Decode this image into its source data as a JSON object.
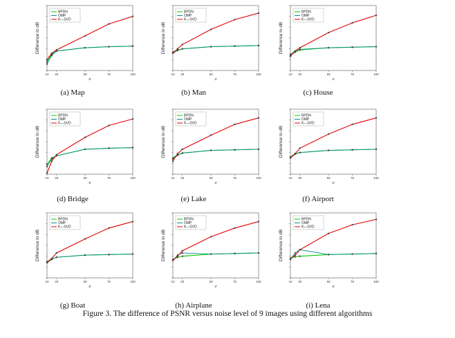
{
  "figure_caption": "Figure 3. The difference of PSNR versus noise level of 9 images using different algorithms",
  "colors": {
    "BPDN": "#00cc00",
    "OMP": "#0a8a8a",
    "K-SVD": "#e00000",
    "marker": "#444444"
  },
  "chart_data": [
    {
      "type": "line",
      "caption": "(a) Map",
      "x": [
        10,
        15,
        20,
        50,
        75,
        100
      ],
      "xlabel": "σ",
      "ylabel": "Difference in dB",
      "x_ticks": [
        "10",
        "20",
        "50",
        "75",
        "100"
      ],
      "y_ticks": [
        "",
        "",
        "",
        "",
        "",
        "",
        ""
      ],
      "xlim": [
        10,
        100
      ],
      "ylim": [
        0,
        6
      ],
      "legend": [
        "BPDN",
        "OMP",
        "K—SVD"
      ],
      "legend_position": "top-left",
      "series": [
        {
          "name": "BPDN",
          "values": [
            0.8,
            1.5,
            1.8,
            2.1,
            2.2,
            2.25
          ]
        },
        {
          "name": "OMP",
          "values": [
            0.6,
            1.4,
            1.8,
            2.1,
            2.2,
            2.25
          ]
        },
        {
          "name": "K-SVD",
          "values": [
            1.0,
            1.6,
            1.9,
            3.2,
            4.3,
            5.0
          ]
        }
      ]
    },
    {
      "type": "line",
      "caption": "(b) Man",
      "x": [
        10,
        15,
        20,
        50,
        75,
        100
      ],
      "xlabel": "σ",
      "ylabel": "Difference in dB",
      "x_ticks": [
        "10",
        "20",
        "50",
        "75",
        "100"
      ],
      "y_ticks": [
        "",
        "",
        "",
        "",
        "",
        "",
        ""
      ],
      "xlim": [
        10,
        100
      ],
      "ylim": [
        0,
        6
      ],
      "legend": [
        "BPDN",
        "OMP",
        "K—SVD"
      ],
      "legend_position": "top-left",
      "series": [
        {
          "name": "BPDN",
          "values": [
            1.7,
            1.9,
            2.0,
            2.2,
            2.25,
            2.3
          ]
        },
        {
          "name": "OMP",
          "values": [
            1.6,
            1.85,
            2.0,
            2.2,
            2.25,
            2.3
          ]
        },
        {
          "name": "K-SVD",
          "values": [
            1.6,
            2.0,
            2.4,
            3.8,
            4.7,
            5.3
          ]
        }
      ]
    },
    {
      "type": "line",
      "caption": "(c) House",
      "x": [
        10,
        15,
        20,
        50,
        75,
        100
      ],
      "xlabel": "σ",
      "ylabel": "Difference in dB",
      "x_ticks": [
        "10",
        "20",
        "50",
        "75",
        "100"
      ],
      "y_ticks": [
        "",
        "",
        "",
        "",
        "",
        "",
        ""
      ],
      "xlim": [
        10,
        100
      ],
      "ylim": [
        0,
        6
      ],
      "legend": [
        "BPDN",
        "OMP",
        "K—SVD"
      ],
      "legend_position": "top-left",
      "series": [
        {
          "name": "BPDN",
          "values": [
            1.4,
            1.7,
            1.9,
            2.1,
            2.15,
            2.2
          ]
        },
        {
          "name": "OMP",
          "values": [
            1.5,
            1.8,
            1.95,
            2.1,
            2.15,
            2.2
          ]
        },
        {
          "name": "K-SVD",
          "values": [
            1.3,
            1.8,
            2.1,
            3.5,
            4.4,
            5.1
          ]
        }
      ]
    },
    {
      "type": "line",
      "caption": "(d) Bridge",
      "x": [
        10,
        15,
        20,
        50,
        75,
        100
      ],
      "xlabel": "σ",
      "ylabel": "Difference in dB",
      "x_ticks": [
        "10",
        "20",
        "50",
        "75",
        "100"
      ],
      "y_ticks": [
        "",
        "",
        "",
        "",
        "",
        "",
        ""
      ],
      "xlim": [
        10,
        100
      ],
      "ylim": [
        0,
        6
      ],
      "legend": [
        "BPDN",
        "OMP",
        "K—SVD"
      ],
      "legend_position": "top-left",
      "series": [
        {
          "name": "BPDN",
          "values": [
            0.9,
            1.5,
            1.7,
            2.3,
            2.4,
            2.45
          ]
        },
        {
          "name": "OMP",
          "values": [
            0.7,
            1.4,
            1.7,
            2.3,
            2.4,
            2.45
          ]
        },
        {
          "name": "K-SVD",
          "values": [
            0.1,
            1.2,
            1.8,
            3.4,
            4.5,
            5.1
          ]
        }
      ]
    },
    {
      "type": "line",
      "caption": "(e) Lake",
      "x": [
        10,
        15,
        20,
        50,
        75,
        100
      ],
      "xlabel": "σ",
      "ylabel": "Difference in dB",
      "x_ticks": [
        "10",
        "20",
        "50",
        "75",
        "100"
      ],
      "y_ticks": [
        "",
        "",
        "",
        "",
        "",
        "",
        ""
      ],
      "xlim": [
        10,
        100
      ],
      "ylim": [
        0,
        6
      ],
      "legend": [
        "BPDN",
        "OMP",
        "K—SVD"
      ],
      "legend_position": "top-left",
      "series": [
        {
          "name": "BPDN",
          "values": [
            1.5,
            1.8,
            1.95,
            2.2,
            2.25,
            2.3
          ]
        },
        {
          "name": "OMP",
          "values": [
            1.4,
            1.75,
            1.95,
            2.2,
            2.25,
            2.3
          ]
        },
        {
          "name": "K-SVD",
          "values": [
            1.2,
            1.9,
            2.3,
            3.6,
            4.6,
            5.2
          ]
        }
      ]
    },
    {
      "type": "line",
      "caption": "(f) Airport",
      "x": [
        10,
        15,
        20,
        50,
        75,
        100
      ],
      "xlabel": "σ",
      "ylabel": "Difference in dB",
      "x_ticks": [
        "10",
        "20",
        "50",
        "75",
        "100"
      ],
      "y_ticks": [
        "",
        "",
        "",
        "",
        "",
        "",
        ""
      ],
      "xlim": [
        10,
        100
      ],
      "ylim": [
        0,
        6
      ],
      "legend": [
        "BPDN",
        "OMP",
        "K—SVD"
      ],
      "legend_position": "top-left",
      "series": [
        {
          "name": "BPDN",
          "values": [
            1.6,
            1.9,
            2.0,
            2.2,
            2.25,
            2.3
          ]
        },
        {
          "name": "OMP",
          "values": [
            1.5,
            1.85,
            2.0,
            2.2,
            2.25,
            2.3
          ]
        },
        {
          "name": "K-SVD",
          "values": [
            1.5,
            1.9,
            2.4,
            3.7,
            4.6,
            5.2
          ]
        }
      ]
    },
    {
      "type": "line",
      "caption": "(g) Boat",
      "x": [
        10,
        15,
        20,
        50,
        75,
        100
      ],
      "xlabel": "σ",
      "ylabel": "Difference in dB",
      "x_ticks": [
        "10",
        "20",
        "50",
        "75",
        "100"
      ],
      "y_ticks": [
        "",
        "",
        "",
        "",
        "",
        "",
        ""
      ],
      "xlim": [
        10,
        100
      ],
      "ylim": [
        0,
        6
      ],
      "legend": [
        "BPDN",
        "OMP",
        "K—SVD"
      ],
      "legend_position": "top-left",
      "series": [
        {
          "name": "BPDN",
          "values": [
            1.5,
            1.75,
            1.9,
            2.1,
            2.15,
            2.2
          ]
        },
        {
          "name": "OMP",
          "values": [
            1.4,
            1.7,
            1.9,
            2.1,
            2.15,
            2.2
          ]
        },
        {
          "name": "K-SVD",
          "values": [
            1.4,
            1.8,
            2.3,
            3.6,
            4.6,
            5.2
          ]
        }
      ]
    },
    {
      "type": "line",
      "caption": "(h) Airplane",
      "x": [
        10,
        15,
        20,
        50,
        75,
        100
      ],
      "xlabel": "σ",
      "ylabel": "Difference in dB",
      "x_ticks": [
        "10",
        "20",
        "50",
        "75",
        "100"
      ],
      "y_ticks": [
        "",
        "",
        "",
        "",
        "",
        "",
        ""
      ],
      "xlim": [
        10,
        100
      ],
      "ylim": [
        0,
        6
      ],
      "legend": [
        "BPDN",
        "OMP",
        "K—SVD"
      ],
      "legend_position": "top-left",
      "series": [
        {
          "name": "BPDN",
          "values": [
            1.7,
            1.9,
            2.0,
            2.2,
            2.25,
            2.3
          ]
        },
        {
          "name": "OMP",
          "values": [
            1.6,
            2.1,
            2.3,
            2.2,
            2.25,
            2.3
          ]
        },
        {
          "name": "K-SVD",
          "values": [
            1.6,
            2.0,
            2.5,
            3.8,
            4.6,
            5.2
          ]
        }
      ]
    },
    {
      "type": "line",
      "caption": "(i) Lena",
      "x": [
        10,
        15,
        20,
        50,
        75,
        100
      ],
      "xlabel": "σ",
      "ylabel": "Difference in dB",
      "x_ticks": [
        "10",
        "20",
        "50",
        "75",
        "100"
      ],
      "y_ticks": [
        "",
        "",
        "",
        "",
        "",
        "",
        ""
      ],
      "xlim": [
        10,
        100
      ],
      "ylim": [
        0,
        6
      ],
      "legend": [
        "BPDN",
        "OMP",
        "K—SVD"
      ],
      "legend_position": "top-left",
      "series": [
        {
          "name": "BPDN",
          "values": [
            1.8,
            1.95,
            2.0,
            2.15,
            2.2,
            2.25
          ]
        },
        {
          "name": "OMP",
          "values": [
            1.7,
            2.3,
            2.6,
            2.15,
            2.2,
            2.25
          ]
        },
        {
          "name": "K-SVD",
          "values": [
            1.8,
            2.1,
            2.6,
            4.1,
            4.9,
            5.4
          ]
        }
      ]
    }
  ]
}
